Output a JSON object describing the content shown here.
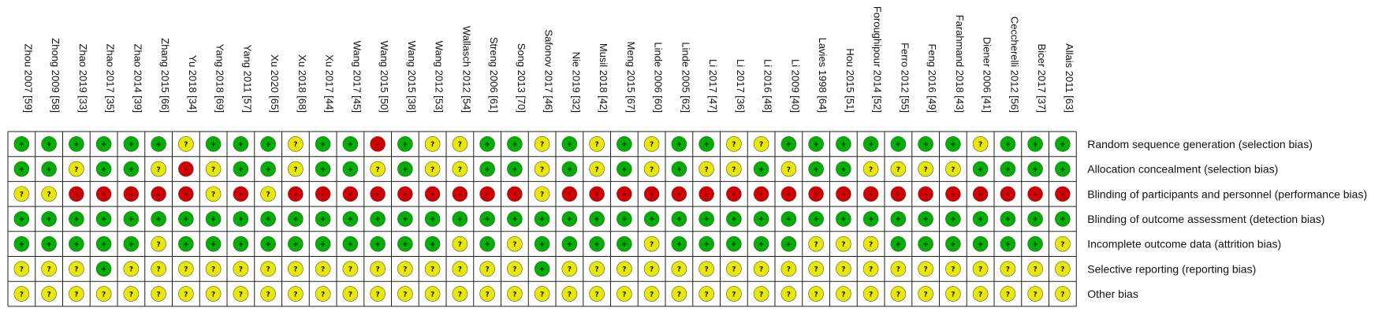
{
  "chart_data": {
    "type": "table",
    "studies": [
      "Zhou 2007 [59]",
      "Zhong 2009 [58]",
      "Zhao 2019 [33]",
      "Zhao 2017 [35]",
      "Zhao 2014 [39]",
      "Zhang 2015 [66]",
      "Yu 2018 [34]",
      "Yang 2018 [69]",
      "Yang 2011 [57]",
      "Xu 2020 [65]",
      "Xu 2018 [68]",
      "Xu 2017 [44]",
      "Wang 2017 [45]",
      "Wang 2015 [50]",
      "Wang 2015 [38]",
      "Wang 2012 [53]",
      "Wallasch 2012 [54]",
      "Streng 2006 [61]",
      "Song 2013 [70]",
      "Safonov 2017 [46]",
      "Nie 2019 [32]",
      "Musil 2018 [42]",
      "Meng 2015 [67]",
      "Linde 2006 [60]",
      "Linde 2005 [62]",
      "Li 2017 [47]",
      "Li 2017 [36]",
      "Li 2016 [48]",
      "Li 2009 [40]",
      "Lavies 1998 [64]",
      "Hou 2015 [51]",
      "Foroughipour 2014 [52]",
      "Ferro 2012 [55]",
      "Feng 2016 [49]",
      "Farahmand 2018 [43]",
      "Diener 2006 [41]",
      "Ceccherelli 2012 [56]",
      "Bicer 2017 [37]",
      "Allais 2011 [63]"
    ],
    "domains": [
      "Random sequence generation (selection bias)",
      "Allocation concealment (selection bias)",
      "Blinding of participants and personnel (performance bias)",
      "Blinding of outcome assessment (detection bias)",
      "Incomplete outcome data (attrition bias)",
      "Selective reporting (reporting bias)",
      "Other bias"
    ],
    "judgement_key": {
      "L": "+",
      "U": "?",
      "H": "-"
    },
    "judgements": [
      "LLLLLLULLLULLHLUULLULULULLUULLLLLLLULLL",
      "LLULLUHULLULLULUULLULULULUULULLUUUULLLL",
      "UUHHHHHUHUHHHHHHHHHUHHHHHHHHHHHHHHHHHHH",
      "LLLLLLLLLLLLLLLLLLLLLLLLLLLLLLLLLLLLLLL",
      "LLLLLULLLLLLLLLLULULLLLULLLLLUUULLLLLLU",
      "UUULUUUUUUUUUUUUUUULUUUUUUUUUUUUUUUUUUU",
      "UUUUUUUUUUUUUUUUUUUUUUUUUUUUUUUUUUUUUUU"
    ],
    "colors": {
      "L": "#00b000",
      "U": "#e8e800",
      "H": "#d00000"
    }
  }
}
